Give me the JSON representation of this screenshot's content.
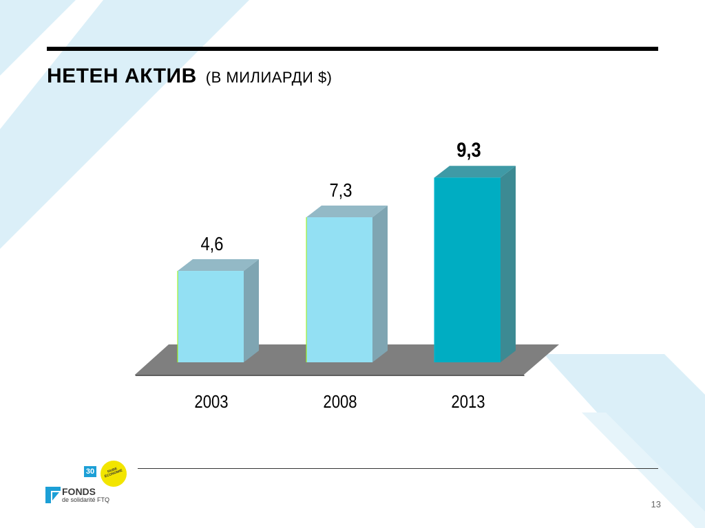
{
  "slide": {
    "title_main": "НЕТЕН АКТИВ",
    "title_sub": "(В МИЛИАРДИ $)",
    "page_number": "13"
  },
  "logo": {
    "anniversary": "30",
    "seal_text": "FAIRE ÉCONOMIE",
    "brand": "FONDS",
    "brand_sub": "de solidarité FTQ"
  },
  "colors": {
    "bar_light": "#93e0f3",
    "bar_highlight": "#00adc2",
    "floor": "#7f7f7f",
    "background_stripes": "#dbeff8"
  },
  "chart_data": {
    "type": "bar",
    "categories": [
      "2003",
      "2008",
      "2013"
    ],
    "values": [
      4.6,
      7.3,
      9.3
    ],
    "value_labels": [
      "4,6",
      "7,3",
      "9,3"
    ],
    "highlight_index": 2,
    "title": "НЕТЕН АКТИВ (В МИЛИАРДИ $)",
    "xlabel": "",
    "ylabel": "",
    "ylim": [
      0,
      10
    ],
    "grid": false,
    "legend": "none"
  }
}
